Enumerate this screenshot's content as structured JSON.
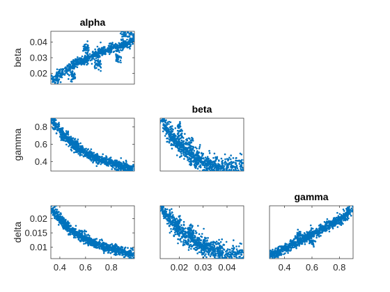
{
  "chart_data": {
    "type": "scatter",
    "layout": "lower-triangular scatter matrix",
    "variables": [
      "alpha",
      "beta",
      "gamma",
      "delta"
    ],
    "marker_color": "#0072BD",
    "axis_color": "#262626",
    "grid": false,
    "legend": "none",
    "panels": [
      {
        "id": "alpha-beta",
        "row": 0,
        "col": 0,
        "title": "alpha",
        "ylabel": "beta",
        "xlabel": "",
        "xlim": [
          0.33,
          0.98
        ],
        "ylim": [
          0.013,
          0.047
        ],
        "xticks": [],
        "yticks": [
          {
            "v": 0.02,
            "label": "0.02"
          },
          {
            "v": 0.03,
            "label": "0.03"
          },
          {
            "v": 0.04,
            "label": "0.04"
          }
        ],
        "trend": "increasing",
        "points": [
          [
            0.35,
            0.016
          ],
          [
            0.38,
            0.017
          ],
          [
            0.4,
            0.02
          ],
          [
            0.42,
            0.021
          ],
          [
            0.45,
            0.022
          ],
          [
            0.48,
            0.024
          ],
          [
            0.5,
            0.025
          ],
          [
            0.52,
            0.026
          ],
          [
            0.55,
            0.027
          ],
          [
            0.58,
            0.028
          ],
          [
            0.6,
            0.029
          ],
          [
            0.62,
            0.03
          ],
          [
            0.65,
            0.031
          ],
          [
            0.68,
            0.032
          ],
          [
            0.7,
            0.033
          ],
          [
            0.72,
            0.034
          ],
          [
            0.75,
            0.034
          ],
          [
            0.78,
            0.035
          ],
          [
            0.8,
            0.036
          ],
          [
            0.82,
            0.037
          ],
          [
            0.85,
            0.037
          ],
          [
            0.88,
            0.038
          ],
          [
            0.9,
            0.039
          ],
          [
            0.92,
            0.039
          ],
          [
            0.95,
            0.04
          ],
          [
            0.97,
            0.041
          ],
          [
            0.97,
            0.045
          ],
          [
            0.9,
            0.045
          ],
          [
            0.6,
            0.036
          ],
          [
            0.5,
            0.018
          ],
          [
            0.7,
            0.026
          ],
          [
            0.85,
            0.03
          ]
        ]
      },
      {
        "id": "alpha-gamma",
        "row": 1,
        "col": 0,
        "title": "",
        "ylabel": "gamma",
        "xlabel": "",
        "xlim": [
          0.33,
          0.98
        ],
        "ylim": [
          0.29,
          0.9
        ],
        "xticks": [],
        "yticks": [
          {
            "v": 0.4,
            "label": "0.4"
          },
          {
            "v": 0.6,
            "label": "0.6"
          },
          {
            "v": 0.8,
            "label": "0.8"
          }
        ],
        "trend": "decreasing-convex",
        "points": [
          [
            0.34,
            0.88
          ],
          [
            0.36,
            0.84
          ],
          [
            0.38,
            0.8
          ],
          [
            0.4,
            0.76
          ],
          [
            0.42,
            0.72
          ],
          [
            0.44,
            0.69
          ],
          [
            0.46,
            0.66
          ],
          [
            0.48,
            0.63
          ],
          [
            0.5,
            0.6
          ],
          [
            0.52,
            0.58
          ],
          [
            0.54,
            0.56
          ],
          [
            0.56,
            0.54
          ],
          [
            0.58,
            0.52
          ],
          [
            0.6,
            0.5
          ],
          [
            0.62,
            0.48
          ],
          [
            0.64,
            0.47
          ],
          [
            0.66,
            0.45
          ],
          [
            0.68,
            0.44
          ],
          [
            0.7,
            0.43
          ],
          [
            0.72,
            0.42
          ],
          [
            0.74,
            0.41
          ],
          [
            0.76,
            0.4
          ],
          [
            0.78,
            0.39
          ],
          [
            0.8,
            0.38
          ],
          [
            0.82,
            0.37
          ],
          [
            0.84,
            0.36
          ],
          [
            0.86,
            0.35
          ],
          [
            0.88,
            0.35
          ],
          [
            0.9,
            0.34
          ],
          [
            0.92,
            0.33
          ],
          [
            0.94,
            0.33
          ],
          [
            0.96,
            0.32
          ]
        ]
      },
      {
        "id": "beta-gamma",
        "row": 1,
        "col": 1,
        "title": "beta",
        "ylabel": "",
        "xlabel": "",
        "xlim": [
          0.012,
          0.047
        ],
        "ylim": [
          0.29,
          0.9
        ],
        "xticks": [],
        "yticks": [],
        "trend": "decreasing-scattered",
        "points": [
          [
            0.013,
            0.88
          ],
          [
            0.014,
            0.82
          ],
          [
            0.015,
            0.76
          ],
          [
            0.016,
            0.72
          ],
          [
            0.017,
            0.68
          ],
          [
            0.018,
            0.65
          ],
          [
            0.019,
            0.62
          ],
          [
            0.02,
            0.6
          ],
          [
            0.021,
            0.57
          ],
          [
            0.022,
            0.55
          ],
          [
            0.023,
            0.52
          ],
          [
            0.024,
            0.5
          ],
          [
            0.025,
            0.48
          ],
          [
            0.026,
            0.46
          ],
          [
            0.027,
            0.44
          ],
          [
            0.028,
            0.42
          ],
          [
            0.029,
            0.41
          ],
          [
            0.03,
            0.39
          ],
          [
            0.031,
            0.38
          ],
          [
            0.032,
            0.37
          ],
          [
            0.033,
            0.36
          ],
          [
            0.034,
            0.35
          ],
          [
            0.035,
            0.35
          ],
          [
            0.036,
            0.34
          ],
          [
            0.037,
            0.34
          ],
          [
            0.038,
            0.33
          ],
          [
            0.04,
            0.33
          ],
          [
            0.042,
            0.33
          ],
          [
            0.044,
            0.34
          ],
          [
            0.046,
            0.35
          ],
          [
            0.02,
            0.75
          ],
          [
            0.025,
            0.62
          ]
        ]
      },
      {
        "id": "alpha-delta",
        "row": 2,
        "col": 0,
        "title": "",
        "ylabel": "delta",
        "xlabel": "",
        "xlim": [
          0.33,
          0.98
        ],
        "ylim": [
          0.006,
          0.0245
        ],
        "xticks": [
          {
            "v": 0.4,
            "label": "0.4"
          },
          {
            "v": 0.6,
            "label": "0.6"
          },
          {
            "v": 0.8,
            "label": "0.8"
          }
        ],
        "yticks": [
          {
            "v": 0.01,
            "label": "0.01"
          },
          {
            "v": 0.015,
            "label": "0.015"
          },
          {
            "v": 0.02,
            "label": "0.02"
          }
        ],
        "trend": "decreasing-convex",
        "points": [
          [
            0.34,
            0.0235
          ],
          [
            0.36,
            0.022
          ],
          [
            0.38,
            0.021
          ],
          [
            0.4,
            0.02
          ],
          [
            0.42,
            0.019
          ],
          [
            0.44,
            0.018
          ],
          [
            0.46,
            0.017
          ],
          [
            0.48,
            0.016
          ],
          [
            0.5,
            0.0155
          ],
          [
            0.52,
            0.015
          ],
          [
            0.54,
            0.0145
          ],
          [
            0.56,
            0.014
          ],
          [
            0.58,
            0.0135
          ],
          [
            0.6,
            0.013
          ],
          [
            0.62,
            0.0125
          ],
          [
            0.64,
            0.012
          ],
          [
            0.66,
            0.0115
          ],
          [
            0.68,
            0.011
          ],
          [
            0.7,
            0.0108
          ],
          [
            0.72,
            0.0105
          ],
          [
            0.74,
            0.0102
          ],
          [
            0.76,
            0.01
          ],
          [
            0.78,
            0.0098
          ],
          [
            0.8,
            0.0095
          ],
          [
            0.82,
            0.0093
          ],
          [
            0.84,
            0.009
          ],
          [
            0.86,
            0.0088
          ],
          [
            0.88,
            0.0085
          ],
          [
            0.9,
            0.0083
          ],
          [
            0.92,
            0.008
          ],
          [
            0.94,
            0.0078
          ],
          [
            0.96,
            0.0075
          ]
        ]
      },
      {
        "id": "beta-delta",
        "row": 2,
        "col": 1,
        "title": "",
        "ylabel": "",
        "xlabel": "",
        "xlim": [
          0.012,
          0.047
        ],
        "ylim": [
          0.006,
          0.0245
        ],
        "xticks": [
          {
            "v": 0.02,
            "label": "0.02"
          },
          {
            "v": 0.03,
            "label": "0.03"
          },
          {
            "v": 0.04,
            "label": "0.04"
          }
        ],
        "yticks": [],
        "trend": "decreasing-scattered",
        "points": [
          [
            0.013,
            0.0235
          ],
          [
            0.014,
            0.022
          ],
          [
            0.015,
            0.021
          ],
          [
            0.016,
            0.02
          ],
          [
            0.017,
            0.019
          ],
          [
            0.018,
            0.018
          ],
          [
            0.019,
            0.017
          ],
          [
            0.02,
            0.016
          ],
          [
            0.021,
            0.015
          ],
          [
            0.022,
            0.0145
          ],
          [
            0.023,
            0.014
          ],
          [
            0.024,
            0.0135
          ],
          [
            0.025,
            0.013
          ],
          [
            0.026,
            0.0125
          ],
          [
            0.027,
            0.012
          ],
          [
            0.028,
            0.0115
          ],
          [
            0.029,
            0.011
          ],
          [
            0.03,
            0.0105
          ],
          [
            0.031,
            0.01
          ],
          [
            0.032,
            0.0095
          ],
          [
            0.033,
            0.0092
          ],
          [
            0.034,
            0.009
          ],
          [
            0.035,
            0.0088
          ],
          [
            0.036,
            0.0085
          ],
          [
            0.037,
            0.0083
          ],
          [
            0.038,
            0.008
          ],
          [
            0.04,
            0.0078
          ],
          [
            0.042,
            0.0076
          ],
          [
            0.044,
            0.0075
          ],
          [
            0.046,
            0.0074
          ],
          [
            0.02,
            0.019
          ],
          [
            0.025,
            0.016
          ]
        ]
      },
      {
        "id": "gamma-delta",
        "row": 2,
        "col": 2,
        "title": "gamma",
        "ylabel": "",
        "xlabel": "",
        "xlim": [
          0.29,
          0.9
        ],
        "ylim": [
          0.006,
          0.0245
        ],
        "xticks": [
          {
            "v": 0.4,
            "label": "0.4"
          },
          {
            "v": 0.6,
            "label": "0.6"
          },
          {
            "v": 0.8,
            "label": "0.8"
          }
        ],
        "yticks": [],
        "trend": "increasing",
        "points": [
          [
            0.3,
            0.0072
          ],
          [
            0.32,
            0.0076
          ],
          [
            0.34,
            0.008
          ],
          [
            0.36,
            0.0085
          ],
          [
            0.38,
            0.009
          ],
          [
            0.4,
            0.0095
          ],
          [
            0.42,
            0.01
          ],
          [
            0.44,
            0.0105
          ],
          [
            0.46,
            0.011
          ],
          [
            0.48,
            0.0115
          ],
          [
            0.5,
            0.012
          ],
          [
            0.52,
            0.0125
          ],
          [
            0.54,
            0.013
          ],
          [
            0.56,
            0.0135
          ],
          [
            0.58,
            0.014
          ],
          [
            0.6,
            0.0145
          ],
          [
            0.62,
            0.015
          ],
          [
            0.64,
            0.0155
          ],
          [
            0.66,
            0.016
          ],
          [
            0.68,
            0.0165
          ],
          [
            0.7,
            0.017
          ],
          [
            0.72,
            0.0175
          ],
          [
            0.74,
            0.018
          ],
          [
            0.76,
            0.0185
          ],
          [
            0.78,
            0.019
          ],
          [
            0.8,
            0.0195
          ],
          [
            0.82,
            0.02
          ],
          [
            0.84,
            0.021
          ],
          [
            0.86,
            0.022
          ],
          [
            0.88,
            0.023
          ],
          [
            0.6,
            0.012
          ],
          [
            0.5,
            0.014
          ]
        ]
      }
    ]
  }
}
